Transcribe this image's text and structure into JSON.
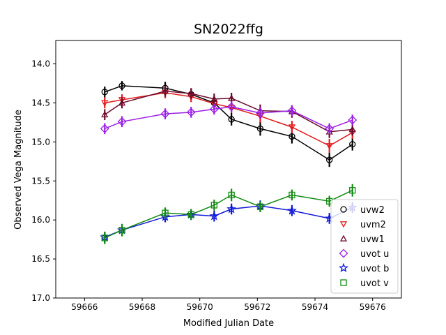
{
  "chart_data": {
    "type": "scatter",
    "title": "SN2022ffg",
    "xlabel": "Modified Julian Date",
    "ylabel": "Observed Vega Magnitude",
    "xlim": [
      59665.0,
      59677.0
    ],
    "ylim": [
      17.0,
      13.7
    ],
    "y_inverted": true,
    "xticks": [
      59666,
      59668,
      59670,
      59672,
      59674,
      59676
    ],
    "xtick_labels": [
      "59666",
      "59668",
      "59670",
      "59672",
      "59674",
      "59676"
    ],
    "yticks": [
      14.0,
      14.5,
      15.0,
      15.5,
      16.0,
      16.5,
      17.0
    ],
    "ytick_labels": [
      "14.0",
      "14.5",
      "15.0",
      "15.5",
      "16.0",
      "16.5",
      "17.0"
    ],
    "grid": false,
    "legend_position": "lower-right",
    "series": [
      {
        "name": "uvw2",
        "color": "#000000",
        "marker": "circle",
        "x": [
          59666.7,
          59667.3,
          59668.8,
          59669.7,
          59670.5,
          59671.1,
          59672.1,
          59673.2,
          59674.5,
          59675.3
        ],
        "y": [
          14.36,
          14.28,
          14.31,
          14.39,
          14.5,
          14.71,
          14.83,
          14.93,
          15.23,
          15.03
        ],
        "yerr": [
          0.07,
          0.06,
          0.08,
          0.07,
          0.07,
          0.08,
          0.09,
          0.09,
          0.09,
          0.08
        ]
      },
      {
        "name": "uvm2",
        "color": "#e31a1c",
        "marker": "triangle-down",
        "x": [
          59666.7,
          59667.3,
          59668.8,
          59669.7,
          59670.5,
          59671.1,
          59672.1,
          59673.2,
          59674.5,
          59675.3
        ],
        "y": [
          14.5,
          14.46,
          14.37,
          14.42,
          14.51,
          14.56,
          14.67,
          14.81,
          15.05,
          14.88
        ],
        "yerr": [
          0.07,
          0.07,
          0.07,
          0.07,
          0.07,
          0.07,
          0.08,
          0.08,
          0.09,
          0.08
        ]
      },
      {
        "name": "uvw1",
        "color": "#6b0a2a",
        "marker": "triangle-up",
        "x": [
          59666.7,
          59667.3,
          59668.8,
          59669.7,
          59670.5,
          59671.1,
          59672.1,
          59673.2,
          59674.5,
          59675.3
        ],
        "y": [
          14.65,
          14.5,
          14.35,
          14.38,
          14.45,
          14.44,
          14.6,
          14.61,
          14.87,
          14.84
        ],
        "yerr": [
          0.07,
          0.07,
          0.07,
          0.07,
          0.07,
          0.07,
          0.08,
          0.08,
          0.08,
          0.08
        ]
      },
      {
        "name": "uvot u",
        "color": "#9a1ee6",
        "marker": "diamond",
        "x": [
          59666.7,
          59667.3,
          59668.8,
          59669.7,
          59670.5,
          59671.1,
          59672.1,
          59673.2,
          59674.5,
          59675.3
        ],
        "y": [
          14.83,
          14.74,
          14.64,
          14.62,
          14.58,
          14.55,
          14.63,
          14.6,
          14.83,
          14.72
        ],
        "yerr": [
          0.07,
          0.07,
          0.07,
          0.07,
          0.07,
          0.07,
          0.07,
          0.07,
          0.07,
          0.07
        ]
      },
      {
        "name": "uvot b",
        "color": "#1018d8",
        "marker": "star",
        "x": [
          59666.7,
          59667.3,
          59668.8,
          59669.7,
          59670.5,
          59671.1,
          59672.1,
          59673.2,
          59674.5,
          59675.3
        ],
        "y": [
          16.22,
          16.13,
          15.96,
          15.93,
          15.95,
          15.86,
          15.82,
          15.88,
          15.98,
          15.84
        ],
        "yerr": [
          0.07,
          0.07,
          0.07,
          0.07,
          0.07,
          0.07,
          0.07,
          0.07,
          0.07,
          0.07
        ]
      },
      {
        "name": "uvot v",
        "color": "#128a12",
        "marker": "square",
        "x": [
          59666.7,
          59667.3,
          59668.8,
          59669.7,
          59670.5,
          59671.1,
          59672.1,
          59673.2,
          59674.5,
          59675.3
        ],
        "y": [
          16.23,
          16.13,
          15.91,
          15.93,
          15.81,
          15.68,
          15.83,
          15.68,
          15.76,
          15.62
        ],
        "yerr": [
          0.08,
          0.08,
          0.07,
          0.07,
          0.07,
          0.08,
          0.07,
          0.07,
          0.07,
          0.08
        ]
      }
    ]
  }
}
